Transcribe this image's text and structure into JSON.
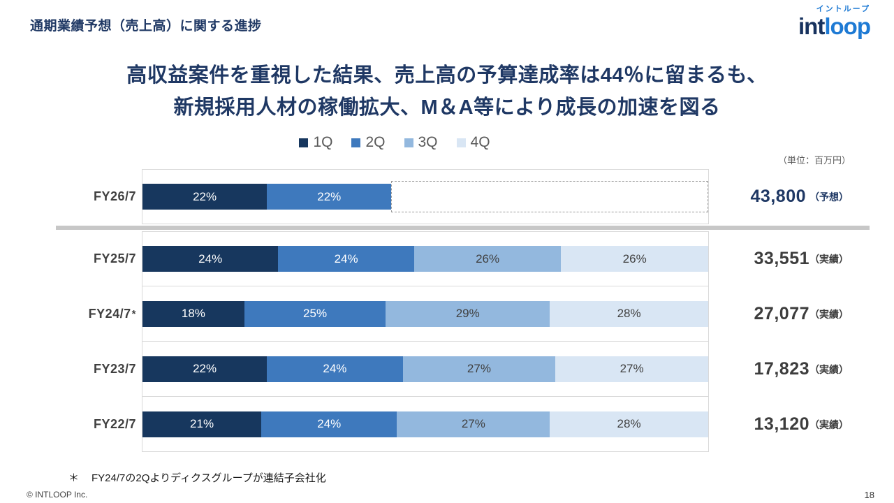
{
  "slide": {
    "title": "通期業績予想（売上高）に関する進捗",
    "headline_line1": "高収益案件を重視した結果、売上高の予算達成率は44％に留まるも、",
    "headline_line2": "新規採用人材の稼働拡大、M＆A等により成長の加速を図る",
    "unit_note": "（単位：百万円）",
    "footnote_marker": "＊",
    "footnote_text": "FY24/7の2Qよりディクスグループが連結子会社化",
    "copyright": "© INTLOOP  Inc.",
    "page_number": "18"
  },
  "logo": {
    "kana": "イントループ",
    "int": "int",
    "loop": "loop"
  },
  "colors": {
    "navy": "#1f3864",
    "divider": "#c7c7c7",
    "plot_border": "#d9d9d9"
  },
  "chart_data": {
    "type": "bar",
    "orientation": "horizontal",
    "stacked": true,
    "unit": "百万円",
    "xlim": [
      0,
      100
    ],
    "x_format": "percent_of_full_year",
    "legend_position": "top-center",
    "grid": false,
    "legend": [
      {
        "label": "1Q",
        "color": "#17375e"
      },
      {
        "label": "2Q",
        "color": "#3e79bd"
      },
      {
        "label": "3Q",
        "color": "#93b8de"
      },
      {
        "label": "4Q",
        "color": "#d9e6f4"
      }
    ],
    "segment_text_colors": [
      "#ffffff",
      "#ffffff",
      "#404040",
      "#404040"
    ],
    "rows": [
      {
        "category": "FY26/7",
        "forecast": true,
        "asterisk": false,
        "segments": [
          22,
          22,
          null,
          null
        ],
        "achieved_pct": 44,
        "total": "43,800",
        "total_suffix": "（予想）"
      },
      {
        "category": "FY25/7",
        "forecast": false,
        "asterisk": false,
        "segments": [
          24,
          24,
          26,
          26
        ],
        "total": "33,551",
        "total_suffix": "（実績）"
      },
      {
        "category": "FY24/7",
        "forecast": false,
        "asterisk": true,
        "segments": [
          18,
          25,
          29,
          28
        ],
        "total": "27,077",
        "total_suffix": "（実績）"
      },
      {
        "category": "FY23/7",
        "forecast": false,
        "asterisk": false,
        "segments": [
          22,
          24,
          27,
          27
        ],
        "total": "17,823",
        "total_suffix": "（実績）"
      },
      {
        "category": "FY22/7",
        "forecast": false,
        "asterisk": false,
        "segments": [
          21,
          24,
          27,
          28
        ],
        "total": "13,120",
        "total_suffix": "（実績）"
      }
    ]
  }
}
